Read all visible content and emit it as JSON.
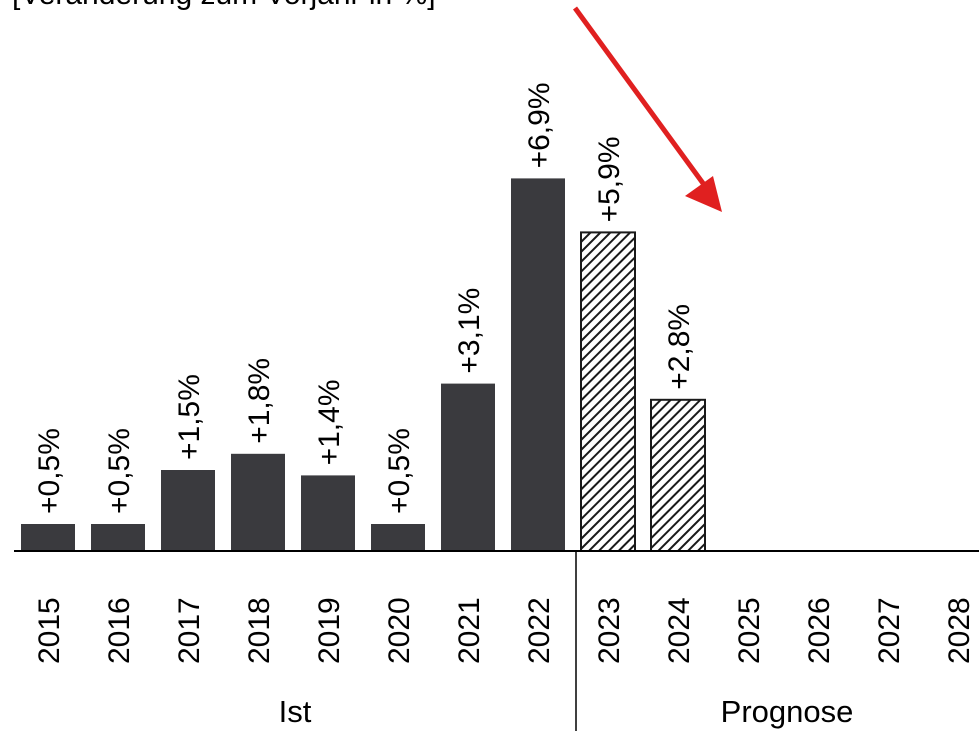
{
  "chart_data": {
    "type": "bar",
    "title": "[Veränderung zum Vorjahr in %]",
    "categories": [
      "2015",
      "2016",
      "2017",
      "2018",
      "2019",
      "2020",
      "2021",
      "2022",
      "2023",
      "2024",
      "2025",
      "2026",
      "2027",
      "2028"
    ],
    "values": [
      0.5,
      0.5,
      1.5,
      1.8,
      1.4,
      0.5,
      3.1,
      6.9,
      5.9,
      2.8,
      null,
      null,
      null,
      null
    ],
    "data_labels": [
      "+0,5%",
      "+0,5%",
      "+1,5%",
      "+1,8%",
      "+1,4%",
      "+0,5%",
      "+3,1%",
      "+6,9%",
      "+5,9%",
      "+2,8%",
      "",
      "",
      "",
      ""
    ],
    "bar_styles": [
      "solid",
      "solid",
      "solid",
      "solid",
      "solid",
      "solid",
      "solid",
      "solid",
      "hatched",
      "hatched",
      "none",
      "none",
      "none",
      "none"
    ],
    "groups": [
      {
        "label": "Ist",
        "categories": [
          "2015",
          "2016",
          "2017",
          "2018",
          "2019",
          "2020",
          "2021",
          "2022"
        ]
      },
      {
        "label": "Prognose",
        "categories": [
          "2023",
          "2024",
          "2025",
          "2026",
          "2027",
          "2028"
        ]
      }
    ],
    "ylim": [
      0,
      7
    ],
    "grid": false,
    "legend": "none",
    "annotation": {
      "type": "arrow",
      "color": "#e02020",
      "direction": "down-right"
    }
  },
  "colors": {
    "bar_solid": "#3a3a3e",
    "hatch": "#1a1a1a",
    "arrow": "#e02020",
    "axis": "#000000"
  }
}
